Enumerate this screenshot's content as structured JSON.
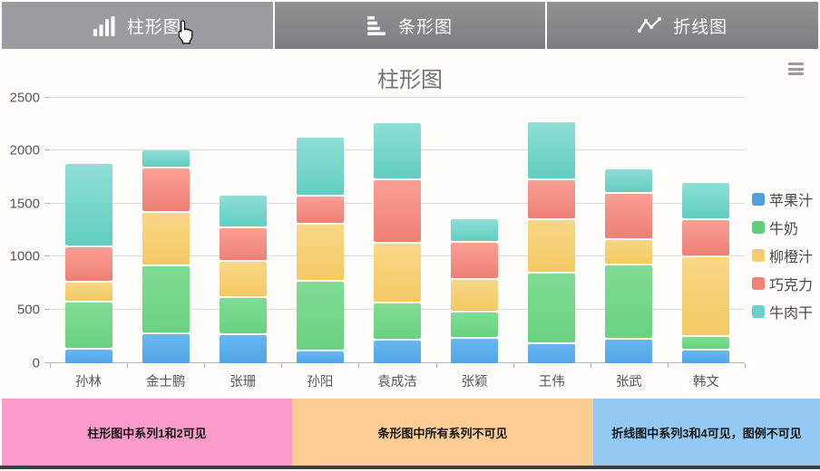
{
  "navbar": {
    "tabs": [
      {
        "label": "柱形图",
        "icon": "column-chart-icon",
        "active": true
      },
      {
        "label": "条形图",
        "icon": "bar-chart-icon",
        "active": false
      },
      {
        "label": "折线图",
        "icon": "line-chart-icon",
        "active": false
      }
    ]
  },
  "chart": {
    "title": "柱形图",
    "toolbox_icon": "menu-icon"
  },
  "chart_data": {
    "type": "bar",
    "stacked": true,
    "title": "柱形图",
    "categories": [
      "孙林",
      "金士鹏",
      "张珊",
      "孙阳",
      "袁成洁",
      "张颖",
      "王伟",
      "张武",
      "韩文"
    ],
    "series": [
      {
        "name": "苹果汁",
        "swatch": "#4D9FE0",
        "gradient": [
          "#68B7EF",
          "#51A6E7"
        ],
        "values": [
          130,
          280,
          280,
          110,
          220,
          240,
          180,
          230,
          120
        ]
      },
      {
        "name": "牛奶",
        "swatch": "#5FD07A",
        "gradient": [
          "#80DD95",
          "#69D27F"
        ],
        "values": [
          440,
          640,
          340,
          660,
          340,
          240,
          670,
          710,
          120
        ]
      },
      {
        "name": "柳橙汁",
        "swatch": "#F5CD6B",
        "gradient": [
          "#F8D787",
          "#F3C963"
        ],
        "values": [
          180,
          510,
          340,
          540,
          560,
          310,
          500,
          230,
          760
        ]
      },
      {
        "name": "巧克力",
        "swatch": "#F28177",
        "gradient": [
          "#FA9F95",
          "#EE8075"
        ],
        "values": [
          330,
          410,
          310,
          250,
          600,
          350,
          370,
          430,
          350
        ]
      },
      {
        "name": "牛肉干",
        "swatch": "#69D3C7",
        "gradient": [
          "#90DFD6",
          "#60CEC1"
        ],
        "values": [
          790,
          160,
          300,
          560,
          530,
          210,
          540,
          220,
          340
        ]
      }
    ],
    "ylim": [
      0,
      2500
    ],
    "yticks": [
      0,
      500,
      1000,
      1500,
      2000,
      2500
    ],
    "grid": true,
    "legend_position": "right"
  },
  "footer_buttons": [
    {
      "label": "柱形图中系列1和2可见",
      "color": "#FB9BCC"
    },
    {
      "label": "条形图中所有系列不可见",
      "color": "#FBCD94"
    },
    {
      "label": "折线图中系列3和4可见，图例不可见",
      "color": "#94C9F3"
    }
  ]
}
